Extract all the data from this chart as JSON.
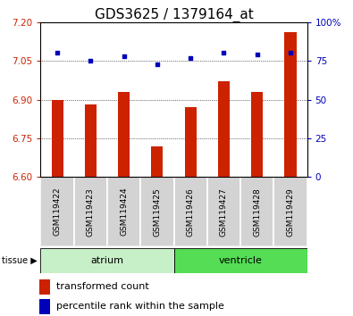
{
  "title": "GDS3625 / 1379164_at",
  "samples": [
    "GSM119422",
    "GSM119423",
    "GSM119424",
    "GSM119425",
    "GSM119426",
    "GSM119427",
    "GSM119428",
    "GSM119429"
  ],
  "transformed_count": [
    6.9,
    6.88,
    6.93,
    6.72,
    6.87,
    6.97,
    6.93,
    7.16
  ],
  "percentile_rank": [
    80,
    75,
    78,
    73,
    77,
    80,
    79,
    80
  ],
  "groups": [
    {
      "label": "atrium",
      "start": 0,
      "end": 4,
      "color": "#c8f0c8"
    },
    {
      "label": "ventricle",
      "start": 4,
      "end": 8,
      "color": "#55dd55"
    }
  ],
  "ylim_left": [
    6.6,
    7.2
  ],
  "ylim_right": [
    0,
    100
  ],
  "yticks_left": [
    6.6,
    6.75,
    6.9,
    7.05,
    7.2
  ],
  "yticks_right": [
    0,
    25,
    50,
    75,
    100
  ],
  "bar_color": "#cc2200",
  "dot_color": "#0000bb",
  "bar_width": 0.35,
  "legend_red": "transformed count",
  "legend_blue": "percentile rank within the sample",
  "tissue_label": "tissue",
  "title_fontsize": 11,
  "tick_fontsize": 7.5,
  "sample_fontsize": 6.5,
  "tissue_fontsize": 8,
  "legend_fontsize": 8
}
